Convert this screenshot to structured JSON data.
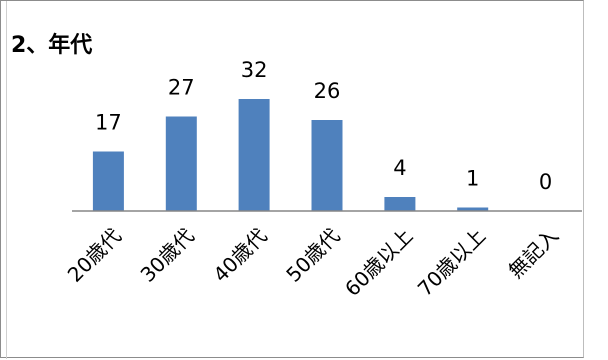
{
  "chart_data": {
    "type": "bar",
    "title": "2、年代",
    "categories": [
      "20歳代",
      "30歳代",
      "40歳代",
      "50歳代",
      "60歳以上",
      "70歳以上",
      "無記入"
    ],
    "values": [
      17,
      27,
      32,
      26,
      4,
      1,
      0
    ],
    "xlabel": "",
    "ylabel": "",
    "ylim": [
      0,
      35
    ],
    "grid": false,
    "legend": "none",
    "bar_color": "#4F81BD",
    "axis_color": "#868686"
  }
}
